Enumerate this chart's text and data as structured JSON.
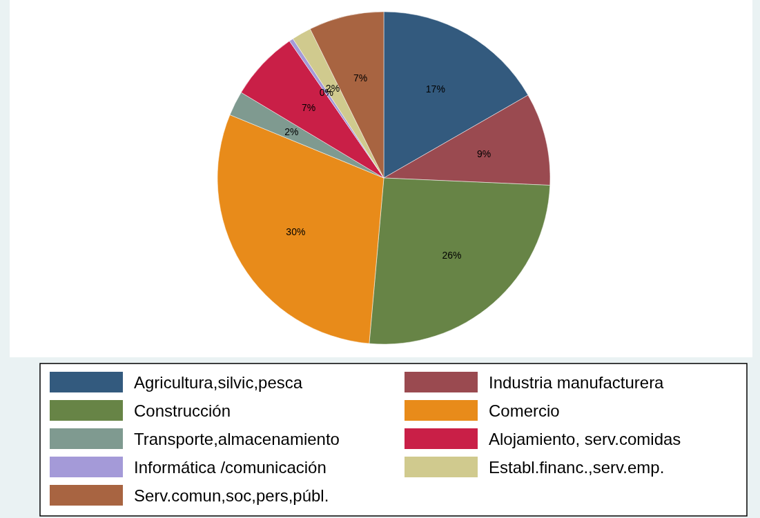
{
  "chart_data": {
    "type": "pie",
    "categories": [
      "Agricultura,silvic,pesca",
      "Industria manufacturera",
      "Construcción",
      "Comercio",
      "Transporte,almacenamiento",
      "Alojamiento, serv.comidas",
      "Informática /comunicación",
      "Establ.financ.,serv.emp.",
      "Serv.comun,soc,pers,públ."
    ],
    "values": [
      16.7,
      9.0,
      25.7,
      29.8,
      2.4,
      6.8,
      0.4,
      1.9,
      7.3
    ],
    "value_labels": [
      "17%",
      "9%",
      "26%",
      "30%",
      "2%",
      "7%",
      "0%",
      "2%",
      "7%"
    ],
    "colors": [
      "#335a7e",
      "#9a4a50",
      "#678446",
      "#e88b1a",
      "#7f9a90",
      "#c91f47",
      "#a49ad8",
      "#d0ca8e",
      "#a86441"
    ],
    "legend": "bottom"
  }
}
